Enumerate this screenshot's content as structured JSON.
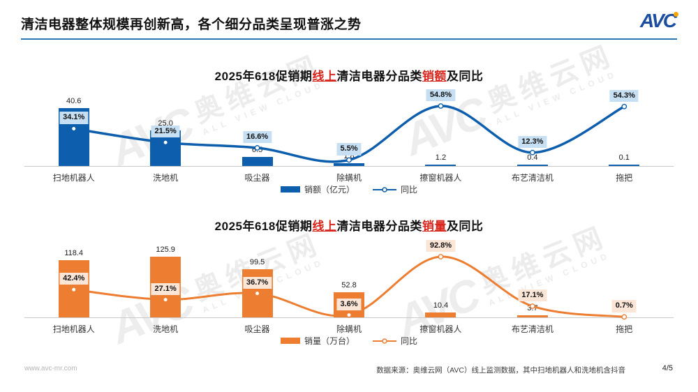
{
  "header": {
    "title": "清洁电器整体规模再创新高，各个细分品类呈现普涨之势",
    "logo_text": "AVC"
  },
  "colors": {
    "accent_red": "#D9261C",
    "rule_blue": "#2E75B6",
    "logo_blue": "#1B4DA0",
    "logo_dot_orange": "#F7A600",
    "axis_gray": "#C9C9C9",
    "bar_blue": "#0D5EAD",
    "pct_bg_blue": "#C7DFF3",
    "bar_orange": "#ED7D31",
    "pct_bg_orange": "#FBE5D6"
  },
  "watermark": {
    "logo_text": "AVC",
    "cn_text": "奥维云网",
    "en_text": "ALL VIEW CLOUD"
  },
  "charts": [
    {
      "title_parts": [
        {
          "text": "2025年618促销期",
          "red": false
        },
        {
          "text": "线上",
          "red": true
        },
        {
          "text": "清洁电器分品类",
          "red": false
        },
        {
          "text": "销额",
          "red": true
        },
        {
          "text": "及同比",
          "red": false
        }
      ],
      "legend": {
        "bar_label": "销额（亿元）",
        "line_label": "同比"
      },
      "bar_color": "#0D5EAD",
      "line_color": "#0D5EAD",
      "pct_label_bg": "#C7DFF3",
      "chart_data": {
        "type": "bar+line",
        "title": "2025年618促销期线上清洁电器分品类销额及同比",
        "categories": [
          "扫地机器人",
          "洗地机",
          "吸尘器",
          "除螨机",
          "擦窗机器人",
          "布艺清洁机",
          "拖把"
        ],
        "series": [
          {
            "name": "销额（亿元）",
            "type": "bar",
            "unit": "亿元",
            "values": [
              40.6,
              25.0,
              6.5,
              1.8,
              1.2,
              0.4,
              0.1
            ]
          },
          {
            "name": "同比",
            "type": "line",
            "unit": "%",
            "values": [
              34.1,
              21.5,
              16.6,
              5.5,
              54.8,
              12.3,
              54.3
            ]
          }
        ],
        "legend_position": "bottom",
        "grid": false,
        "value_labels": true
      }
    },
    {
      "title_parts": [
        {
          "text": "2025年618促销期",
          "red": false
        },
        {
          "text": "线上",
          "red": true
        },
        {
          "text": "清洁电器分品类",
          "red": false
        },
        {
          "text": "销量",
          "red": true
        },
        {
          "text": "及同比",
          "red": false
        }
      ],
      "legend": {
        "bar_label": "销量（万台）",
        "line_label": "同比"
      },
      "bar_color": "#ED7D31",
      "line_color": "#ED7D31",
      "pct_label_bg": "#FBE5D6",
      "chart_data": {
        "type": "bar+line",
        "title": "2025年618促销期线上清洁电器分品类销量及同比",
        "categories": [
          "扫地机器人",
          "洗地机",
          "吸尘器",
          "除螨机",
          "擦窗机器人",
          "布艺清洁机",
          "拖把"
        ],
        "series": [
          {
            "name": "销量（万台）",
            "type": "bar",
            "unit": "万台",
            "values": [
              118.4,
              125.9,
              99.5,
              52.8,
              10.4,
              3.7,
              null
            ]
          },
          {
            "name": "同比",
            "type": "line",
            "unit": "%",
            "values": [
              42.4,
              27.1,
              36.7,
              3.6,
              92.8,
              17.1,
              0.7
            ]
          }
        ],
        "legend_position": "bottom",
        "grid": false,
        "value_labels": true
      }
    }
  ],
  "footer": {
    "website": "www.avc-mr.com",
    "source": "数据来源：奥维云网（AVC）线上监测数据，其中扫地机器人和洗地机含抖音",
    "page": "4/5"
  }
}
